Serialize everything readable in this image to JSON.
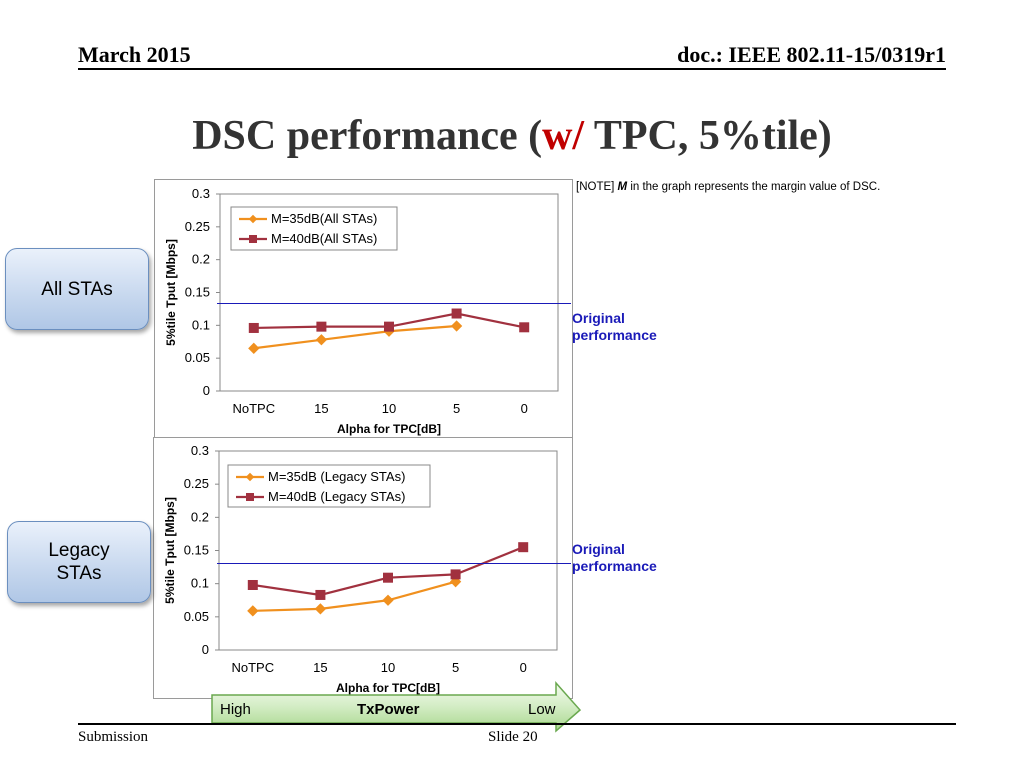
{
  "header": {
    "date": "March 2015",
    "doc": "doc.: IEEE 802.11-15/0319r1"
  },
  "title": {
    "main": "DSC performance (",
    "accent": "w/",
    "rest": " TPC, 5%tile)"
  },
  "note": {
    "prefix": "[NOTE] ",
    "m": "M",
    "suffix": " in the graph represents the margin value of DSC."
  },
  "side_labels": {
    "all": "All STAs",
    "legacy_line1": "Legacy",
    "legacy_line2": "STAs"
  },
  "original_performance": {
    "line1": "Original",
    "line2": "performance"
  },
  "arrow": {
    "high": "High",
    "mid": "TxPower",
    "low": "Low"
  },
  "footer": {
    "left": "Submission",
    "slide": "Slide 20"
  },
  "colors": {
    "orange": "#f0901e",
    "maroon": "#a1313f",
    "blue_line": "#1a1ab8"
  },
  "chart_data": [
    {
      "type": "line",
      "categories": [
        "NoTPC",
        "15",
        "10",
        "5",
        "0"
      ],
      "xlabel": "Alpha for TPC[dB]",
      "ylabel": "5%tile Tput [Mbps]",
      "ylim": [
        0,
        0.3
      ],
      "yticks": [
        "0",
        "0.05",
        "0.1",
        "0.15",
        "0.2",
        "0.25",
        "0.3"
      ],
      "legend": "top-left",
      "reference_line": 0.132,
      "series": [
        {
          "name": "M=35dB(All STAs)",
          "values": [
            0.065,
            0.078,
            0.091,
            0.099,
            null
          ]
        },
        {
          "name": "M=40dB(All STAs)",
          "values": [
            0.096,
            0.098,
            0.098,
            0.118,
            0.097
          ]
        }
      ]
    },
    {
      "type": "line",
      "categories": [
        "NoTPC",
        "15",
        "10",
        "5",
        "0"
      ],
      "xlabel": "Alpha for TPC[dB]",
      "ylabel": "5%tile Tput [Mbps]",
      "ylim": [
        0,
        0.3
      ],
      "yticks": [
        "0",
        "0.05",
        "0.1",
        "0.15",
        "0.2",
        "0.25",
        "0.3"
      ],
      "legend": "top-left",
      "reference_line": 0.13,
      "series": [
        {
          "name": "M=35dB (Legacy STAs)",
          "values": [
            0.059,
            0.062,
            0.075,
            0.103,
            null
          ]
        },
        {
          "name": "M=40dB (Legacy STAs)",
          "values": [
            0.098,
            0.083,
            0.109,
            0.114,
            0.155
          ]
        }
      ]
    }
  ]
}
